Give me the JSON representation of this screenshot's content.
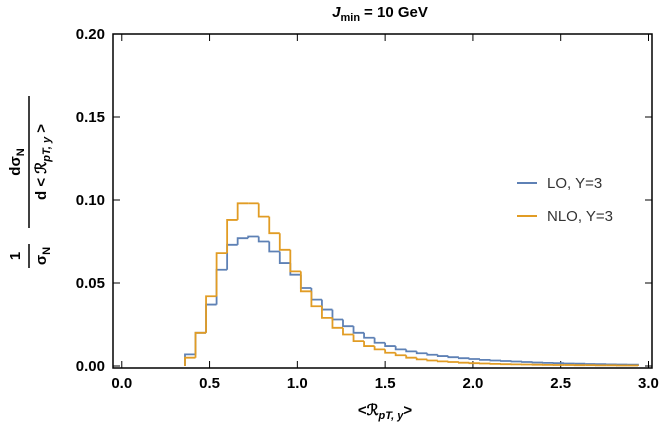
{
  "chart_data": {
    "type": "step_histogram",
    "title": {
      "symbol": "J",
      "subscript": "min",
      "text": "= 10 GeV"
    },
    "xlabel": {
      "open": "<ℛ",
      "subscript": "pT, y",
      "close": ">"
    },
    "ylabel": {
      "one": "1",
      "sigma": "σ",
      "sigma_sub": "N",
      "d_sigma": "dσ",
      "d_sigma_sub": "N",
      "d_open": "d < ℛ",
      "d_sub": "pT, y",
      "d_close": " >"
    },
    "bins": [
      0.36,
      0.42,
      0.48,
      0.54,
      0.6,
      0.66,
      0.72,
      0.78,
      0.84,
      0.9,
      0.96,
      1.02,
      1.08,
      1.14,
      1.2,
      1.26,
      1.32,
      1.38,
      1.44,
      1.5,
      1.56,
      1.62,
      1.68,
      1.74,
      1.8,
      1.86,
      1.92,
      1.98,
      2.04,
      2.1,
      2.16,
      2.22,
      2.28,
      2.34,
      2.4,
      2.46,
      2.52,
      2.58,
      2.64,
      2.7,
      2.76,
      2.82,
      2.88,
      2.94
    ],
    "series": [
      {
        "name": "LO, Y=3",
        "color": "#5e81b5",
        "values": [
          0.007,
          0.02,
          0.037,
          0.058,
          0.073,
          0.077,
          0.078,
          0.075,
          0.069,
          0.062,
          0.055,
          0.047,
          0.04,
          0.034,
          0.028,
          0.024,
          0.02,
          0.017,
          0.014,
          0.012,
          0.01,
          0.0088,
          0.0077,
          0.0068,
          0.006,
          0.0053,
          0.0047,
          0.0042,
          0.0037,
          0.0033,
          0.003,
          0.0027,
          0.0024,
          0.0021,
          0.0019,
          0.0017,
          0.0015,
          0.0014,
          0.0012,
          0.0011,
          0.001,
          0.0009,
          0.0008
        ]
      },
      {
        "name": "NLO, Y=3",
        "color": "#e19c24",
        "values": [
          0.005,
          0.02,
          0.042,
          0.068,
          0.088,
          0.098,
          0.098,
          0.09,
          0.08,
          0.07,
          0.057,
          0.045,
          0.036,
          0.029,
          0.023,
          0.019,
          0.015,
          0.012,
          0.01,
          0.008,
          0.0065,
          0.005,
          0.004,
          0.0033,
          0.0028,
          0.0024,
          0.002,
          0.0017,
          0.0015,
          0.0013,
          0.0011,
          0.001,
          0.0009,
          0.0008,
          0.0007,
          0.0006,
          0.0006,
          0.0005,
          0.0005,
          0.0004,
          0.0004,
          0.0003,
          0.0003
        ]
      }
    ],
    "xlim": [
      -0.05,
      3.02
    ],
    "ylim": [
      -0.0012,
      0.2
    ],
    "xticks": [
      {
        "value": 0,
        "label": "0.0"
      },
      0.5,
      {
        "value": 1,
        "label": "1.0"
      },
      1.5,
      {
        "value": 2,
        "label": "2.0"
      },
      2.5,
      {
        "value": 3,
        "label": "3.0"
      }
    ],
    "yticks": [
      {
        "value": 0,
        "label": "0.00"
      },
      {
        "value": 0.05,
        "label": "0.05"
      },
      {
        "value": 0.1,
        "label": "0.10"
      },
      {
        "value": 0.15,
        "label": "0.15"
      },
      {
        "value": 0.2,
        "label": "0.20"
      }
    ],
    "legend": "right"
  }
}
